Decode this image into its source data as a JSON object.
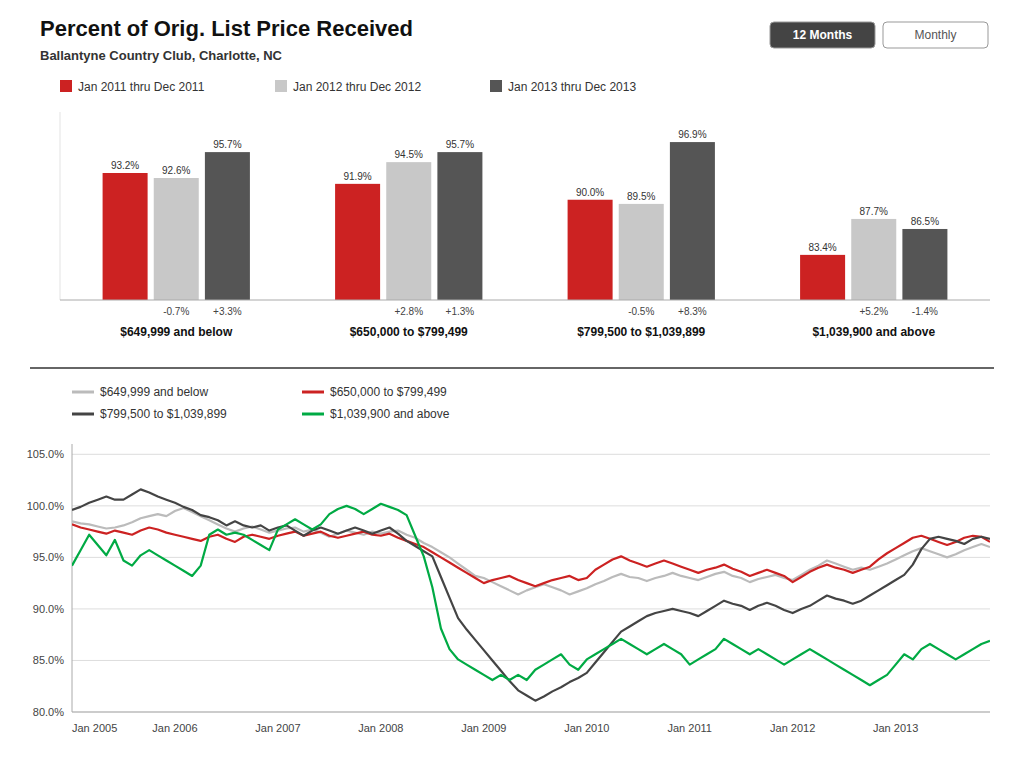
{
  "chart_data": [
    {
      "type": "bar",
      "title": "Percent of Orig. List Price Received",
      "subtitle": "Ballantyne Country Club, Charlotte, NC",
      "annotations": [
        "12 Months",
        "Monthly"
      ],
      "categories": [
        "$649,999 and below",
        "$650,000 to $799,499",
        "$799,500 to $1,039,899",
        "$1,039,900 and above"
      ],
      "series": [
        {
          "name": "Jan 2011 thru Dec 2011",
          "color": "#cc2222",
          "values": [
            93.2,
            91.9,
            90.0,
            83.4
          ],
          "value_labels": [
            "93.2%",
            "91.9%",
            "90.0%",
            "83.4%"
          ]
        },
        {
          "name": "Jan 2012 thru Dec 2012",
          "color": "#c8c8c8",
          "values": [
            92.6,
            94.5,
            89.5,
            87.7
          ],
          "value_labels": [
            "92.6%",
            "94.5%",
            "89.5%",
            "87.7%"
          ],
          "annotations": [
            "-0.7%",
            "+2.8%",
            "-0.5%",
            "+5.2%"
          ]
        },
        {
          "name": "Jan 2013 thru Dec 2013",
          "color": "#555555",
          "values": [
            95.7,
            95.7,
            96.9,
            86.5
          ],
          "value_labels": [
            "95.7%",
            "95.7%",
            "96.9%",
            "86.5%"
          ],
          "annotations": [
            "+3.3%",
            "+1.3%",
            "+8.3%",
            "-1.4%"
          ]
        }
      ],
      "ylim": [
        78,
        100.5
      ],
      "data_labels": true,
      "tick_labels": "x",
      "grid": false,
      "legend": "upper left"
    },
    {
      "type": "line",
      "categories": [
        "Jan 2005",
        null,
        null,
        null,
        null,
        null,
        null,
        null,
        null,
        null,
        null,
        null,
        "Jan 2006",
        null,
        null,
        null,
        null,
        null,
        null,
        null,
        null,
        null,
        null,
        null,
        "Jan 2007",
        null,
        null,
        null,
        null,
        null,
        null,
        null,
        null,
        null,
        null,
        null,
        "Jan 2008",
        null,
        null,
        null,
        null,
        null,
        null,
        null,
        null,
        null,
        null,
        null,
        "Jan 2009",
        null,
        null,
        null,
        null,
        null,
        null,
        null,
        null,
        null,
        null,
        null,
        "Jan 2010",
        null,
        null,
        null,
        null,
        null,
        null,
        null,
        null,
        null,
        null,
        null,
        "Jan 2011",
        null,
        null,
        null,
        null,
        null,
        null,
        null,
        null,
        null,
        null,
        null,
        "Jan 2012",
        null,
        null,
        null,
        null,
        null,
        null,
        null,
        null,
        null,
        null,
        null,
        "Jan 2013",
        null,
        null,
        null,
        null,
        null,
        null,
        null,
        null,
        null,
        null,
        null
      ],
      "series": [
        {
          "name": "$649,999 and below",
          "color": "#bbbbbb",
          "values": [
            98.5,
            98.3,
            98.2,
            98.0,
            97.8,
            97.9,
            98.1,
            98.4,
            98.8,
            99.0,
            99.2,
            99.0,
            99.5,
            99.8,
            99.4,
            99.0,
            98.6,
            98.2,
            97.8,
            97.5,
            97.8,
            98.0,
            97.7,
            97.4,
            97.6,
            97.8,
            97.9,
            97.5,
            97.7,
            97.4,
            97.0,
            97.3,
            97.6,
            97.4,
            97.2,
            97.5,
            97.3,
            97.5,
            97.6,
            97.2,
            96.9,
            96.4,
            96.0,
            95.5,
            95.0,
            94.4,
            93.8,
            93.2,
            93.0,
            92.6,
            92.2,
            91.8,
            91.4,
            91.8,
            92.1,
            92.4,
            92.1,
            91.8,
            91.4,
            91.7,
            92.0,
            92.4,
            92.7,
            93.1,
            93.4,
            93.1,
            93.0,
            92.7,
            93.0,
            93.2,
            93.5,
            93.2,
            93.0,
            92.8,
            93.1,
            93.4,
            93.6,
            93.2,
            93.0,
            92.6,
            92.9,
            93.1,
            93.3,
            93.0,
            92.8,
            93.3,
            93.8,
            94.2,
            94.7,
            94.4,
            94.1,
            93.8,
            94.0,
            93.8,
            94.1,
            94.4,
            94.8,
            95.2,
            95.6,
            95.9,
            95.6,
            95.3,
            95.0,
            95.3,
            95.7,
            96.0,
            96.3,
            96.0
          ]
        },
        {
          "name": "$650,000 to $799,499",
          "color": "#cc2222",
          "values": [
            98.2,
            97.9,
            97.7,
            97.5,
            97.3,
            97.6,
            97.4,
            97.2,
            97.6,
            97.9,
            97.7,
            97.4,
            97.2,
            97.0,
            96.8,
            96.6,
            97.0,
            97.2,
            96.8,
            96.5,
            97.0,
            97.2,
            97.0,
            96.8,
            97.1,
            97.3,
            97.5,
            97.1,
            97.3,
            97.5,
            97.1,
            96.9,
            97.1,
            97.3,
            97.5,
            97.2,
            97.1,
            97.3,
            96.9,
            96.6,
            96.3,
            96.0,
            95.5,
            95.0,
            94.5,
            94.0,
            93.5,
            93.0,
            92.5,
            92.8,
            93.0,
            93.2,
            92.8,
            92.5,
            92.2,
            92.5,
            92.8,
            93.0,
            93.2,
            92.8,
            93.0,
            93.8,
            94.3,
            94.8,
            95.1,
            94.7,
            94.4,
            94.1,
            94.4,
            94.7,
            94.4,
            94.1,
            93.8,
            93.5,
            93.8,
            94.0,
            94.3,
            93.9,
            93.6,
            93.2,
            93.5,
            93.8,
            93.5,
            93.2,
            92.6,
            93.1,
            93.6,
            94.0,
            94.3,
            94.0,
            93.8,
            93.5,
            93.8,
            94.1,
            94.8,
            95.4,
            95.9,
            96.4,
            96.9,
            97.1,
            96.8,
            96.5,
            96.2,
            96.5,
            96.9,
            97.1,
            97.0,
            96.5
          ]
        },
        {
          "name": "$799,500 to $1,039,899",
          "color": "#444444",
          "values": [
            99.6,
            99.9,
            100.3,
            100.6,
            100.9,
            100.6,
            100.6,
            101.1,
            101.6,
            101.3,
            100.9,
            100.6,
            100.3,
            99.9,
            99.6,
            99.1,
            98.9,
            98.6,
            98.1,
            98.5,
            98.1,
            97.9,
            98.1,
            97.6,
            97.9,
            98.1,
            97.6,
            97.1,
            97.6,
            97.9,
            97.6,
            97.3,
            97.6,
            97.9,
            97.6,
            97.3,
            97.6,
            97.9,
            97.3,
            96.6,
            96.1,
            95.6,
            95.1,
            93.1,
            91.1,
            89.1,
            88.0,
            87.0,
            86.0,
            85.0,
            84.0,
            83.0,
            82.1,
            81.6,
            81.1,
            81.5,
            82.0,
            82.4,
            82.9,
            83.3,
            83.8,
            84.8,
            85.8,
            86.8,
            87.8,
            88.3,
            88.8,
            89.3,
            89.6,
            89.8,
            90.0,
            89.8,
            89.6,
            89.3,
            89.8,
            90.3,
            90.8,
            90.5,
            90.3,
            89.9,
            90.3,
            90.6,
            90.3,
            89.9,
            89.6,
            90.0,
            90.3,
            90.8,
            91.3,
            91.0,
            90.8,
            90.5,
            90.8,
            91.3,
            91.8,
            92.3,
            92.8,
            93.3,
            94.3,
            95.8,
            96.8,
            97.0,
            96.8,
            96.6,
            96.3,
            96.8,
            97.0,
            96.8
          ]
        },
        {
          "name": "$1,039,900 and above",
          "color": "#00aa44",
          "values": [
            94.2,
            95.7,
            97.2,
            96.2,
            95.2,
            96.7,
            94.7,
            94.2,
            95.2,
            95.7,
            95.2,
            94.7,
            94.2,
            93.7,
            93.2,
            94.2,
            97.2,
            97.7,
            97.2,
            97.4,
            97.2,
            96.7,
            96.2,
            95.7,
            97.7,
            98.2,
            98.7,
            98.2,
            97.7,
            98.2,
            99.2,
            99.7,
            100.0,
            99.7,
            99.2,
            99.7,
            100.2,
            99.9,
            99.6,
            99.1,
            97.1,
            95.1,
            92.1,
            88.1,
            86.1,
            85.1,
            84.6,
            84.1,
            83.6,
            83.1,
            83.6,
            83.1,
            83.6,
            83.1,
            84.1,
            84.6,
            85.1,
            85.6,
            84.6,
            84.1,
            85.1,
            85.6,
            86.1,
            86.6,
            87.1,
            86.6,
            86.1,
            85.6,
            86.1,
            86.6,
            86.1,
            85.6,
            84.6,
            85.1,
            85.6,
            86.1,
            87.1,
            86.6,
            86.1,
            85.6,
            86.1,
            85.6,
            85.1,
            84.6,
            85.1,
            85.6,
            86.1,
            85.6,
            85.1,
            84.6,
            84.1,
            83.6,
            83.1,
            82.6,
            83.1,
            83.6,
            84.6,
            85.6,
            85.1,
            86.1,
            86.6,
            86.1,
            85.6,
            85.1,
            85.6,
            86.1,
            86.6,
            86.9
          ]
        }
      ],
      "ylim": [
        80.0,
        106.0
      ],
      "yticks": [
        {
          "value": 80.0,
          "label": "80.0%"
        },
        {
          "value": 85.0,
          "label": "85.0%"
        },
        {
          "value": 90.0,
          "label": "90.0%"
        },
        {
          "value": 95.0,
          "label": "95.0%"
        },
        {
          "value": 100.0,
          "label": "100.0%"
        },
        {
          "value": 105.0,
          "label": "105.0%"
        }
      ],
      "grid": true,
      "legend": "upper left"
    }
  ]
}
